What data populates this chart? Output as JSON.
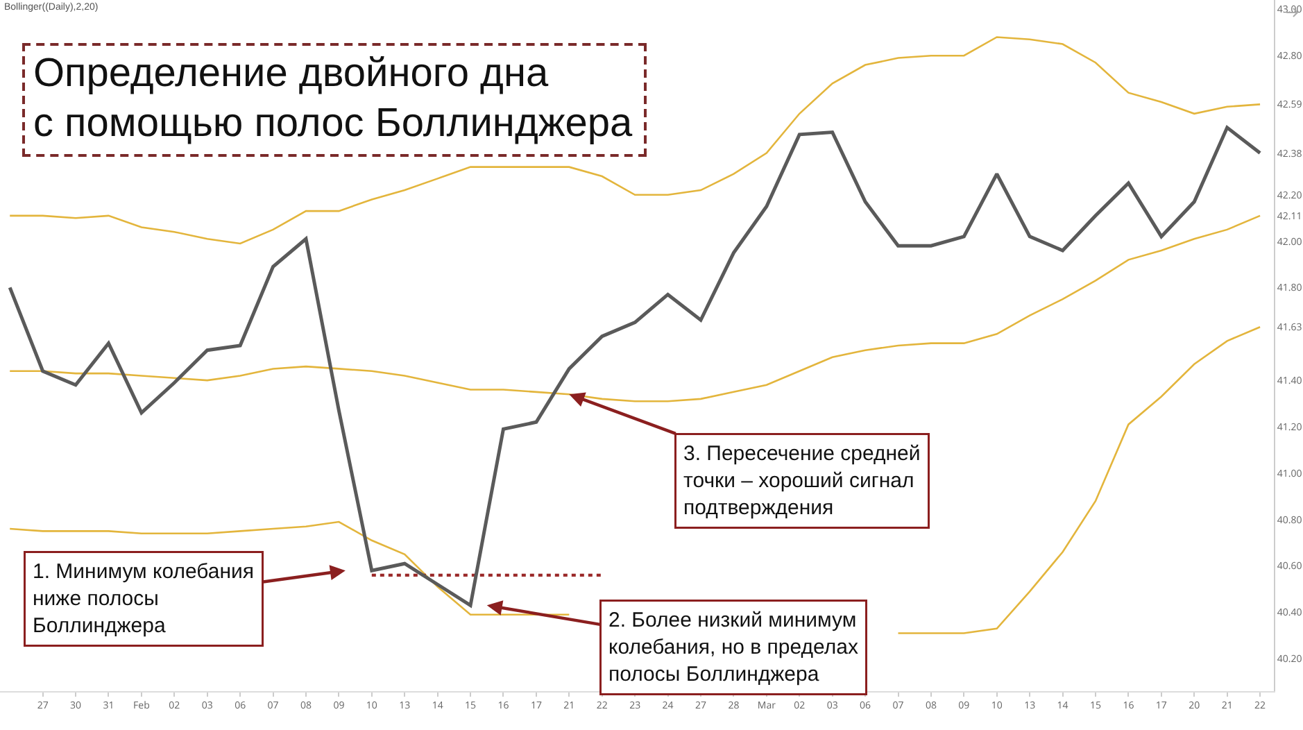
{
  "chart_data": {
    "type": "line",
    "title": "Определение двойного дна\nс помощью полос Боллинджера",
    "subtitle": "Bollinger((Daily),2,20)",
    "categories": [
      null,
      "27",
      "30",
      "31",
      "Feb",
      "02",
      "03",
      "06",
      "07",
      "08",
      "09",
      "10",
      "13",
      "14",
      "15",
      "16",
      "17",
      "21",
      "22",
      "23",
      "24",
      "27",
      "28",
      "Mar",
      "02",
      "03",
      "06",
      "07",
      "08",
      "09",
      "10",
      "13",
      "14",
      "15",
      "16",
      "17",
      "20",
      "21",
      "22"
    ],
    "series": [
      {
        "color": "#5a5a5a",
        "values": [
          41.8,
          41.44,
          41.38,
          41.56,
          41.26,
          41.39,
          41.53,
          41.55,
          41.89,
          42.01,
          41.27,
          40.58,
          40.61,
          40.52,
          40.43,
          41.19,
          41.22,
          41.45,
          41.59,
          41.65,
          41.77,
          41.66,
          41.95,
          42.15,
          42.46,
          42.47,
          42.17,
          41.98,
          41.98,
          42.02,
          42.29,
          42.02,
          41.96,
          42.11,
          42.25,
          42.02,
          42.17,
          42.49,
          42.38
        ]
      },
      {
        "color": "#e3b53c",
        "values": [
          42.11,
          42.11,
          42.1,
          42.11,
          42.06,
          42.04,
          42.01,
          41.99,
          42.05,
          42.13,
          42.13,
          42.18,
          42.22,
          42.27,
          42.32,
          42.32,
          42.32,
          42.32,
          42.28,
          42.2,
          42.2,
          42.22,
          42.29,
          42.38,
          42.55,
          42.68,
          42.76,
          42.79,
          42.8,
          42.8,
          42.88,
          42.87,
          42.85,
          42.77,
          42.64,
          42.6,
          42.55,
          42.58,
          42.59
        ]
      },
      {
        "color": "#e3b53c",
        "values": [
          41.44,
          41.44,
          41.43,
          41.43,
          41.42,
          41.41,
          41.4,
          41.42,
          41.45,
          41.46,
          41.45,
          41.44,
          41.42,
          41.39,
          41.36,
          41.36,
          41.35,
          41.34,
          41.32,
          41.31,
          41.31,
          41.32,
          41.35,
          41.38,
          41.44,
          41.5,
          41.53,
          41.55,
          41.56,
          41.56,
          41.6,
          41.68,
          41.75,
          41.83,
          41.92,
          41.96,
          42.01,
          42.05,
          42.11
        ]
      },
      {
        "color": "#e3b53c",
        "values": [
          40.76,
          40.75,
          40.75,
          40.75,
          40.74,
          40.74,
          40.74,
          40.75,
          40.76,
          40.77,
          40.79,
          40.71,
          40.65,
          40.51,
          40.39,
          40.39,
          40.39,
          40.39,
          null,
          null,
          null,
          null,
          null,
          null,
          null,
          null,
          null,
          40.31,
          40.31,
          40.31,
          40.33,
          40.49,
          40.66,
          40.88,
          41.21,
          41.33,
          41.47,
          41.57,
          41.63
        ]
      },
      {
        "color": "#9b2a2a",
        "line_style": "dotted",
        "values": [
          null,
          null,
          null,
          null,
          null,
          null,
          null,
          null,
          null,
          null,
          null,
          40.56,
          40.56,
          40.56,
          40.56,
          40.56,
          40.56,
          40.56,
          40.56,
          null,
          null,
          null,
          null,
          null,
          null,
          null,
          null,
          null,
          null,
          null,
          null,
          null,
          null,
          null,
          null,
          null,
          null,
          null,
          null
        ]
      }
    ],
    "annotations": [
      "1. Минимум колебания\nниже полосы\nБоллинджера",
      "2. Более низкий минимум\nколебания, но в пределах\nполосы Боллинджера",
      {
        "text": "3. Пересечение средней\nточки – хороший сигнал\nподтверждения",
        "x": "21",
        "y": 41.34
      }
    ],
    "ylim": [
      40.06,
      43.04
    ],
    "yticks": [
      {
        "value": 40.2,
        "label": "40.20"
      },
      {
        "value": 40.4,
        "label": "40.40"
      },
      {
        "value": 40.6,
        "label": "40.60"
      },
      {
        "value": 40.8,
        "label": "40.80"
      },
      {
        "value": 41.0,
        "label": "41.00"
      },
      {
        "value": 41.2,
        "label": "41.20"
      },
      {
        "value": 41.4,
        "label": "41.40"
      },
      {
        "value": 41.63,
        "label": "41.63"
      },
      {
        "value": 41.8,
        "label": "41.80"
      },
      {
        "value": 42.0,
        "label": "42.00"
      },
      {
        "value": 42.11,
        "label": "42.11"
      },
      {
        "value": 42.2,
        "label": "42.20"
      },
      {
        "value": 42.38,
        "label": "42.38"
      },
      {
        "value": 42.59,
        "label": "42.59"
      },
      {
        "value": 42.8,
        "label": "42.80"
      },
      {
        "value": 43.0,
        "label": "43.00"
      }
    ],
    "grid": false,
    "marker": "none"
  }
}
